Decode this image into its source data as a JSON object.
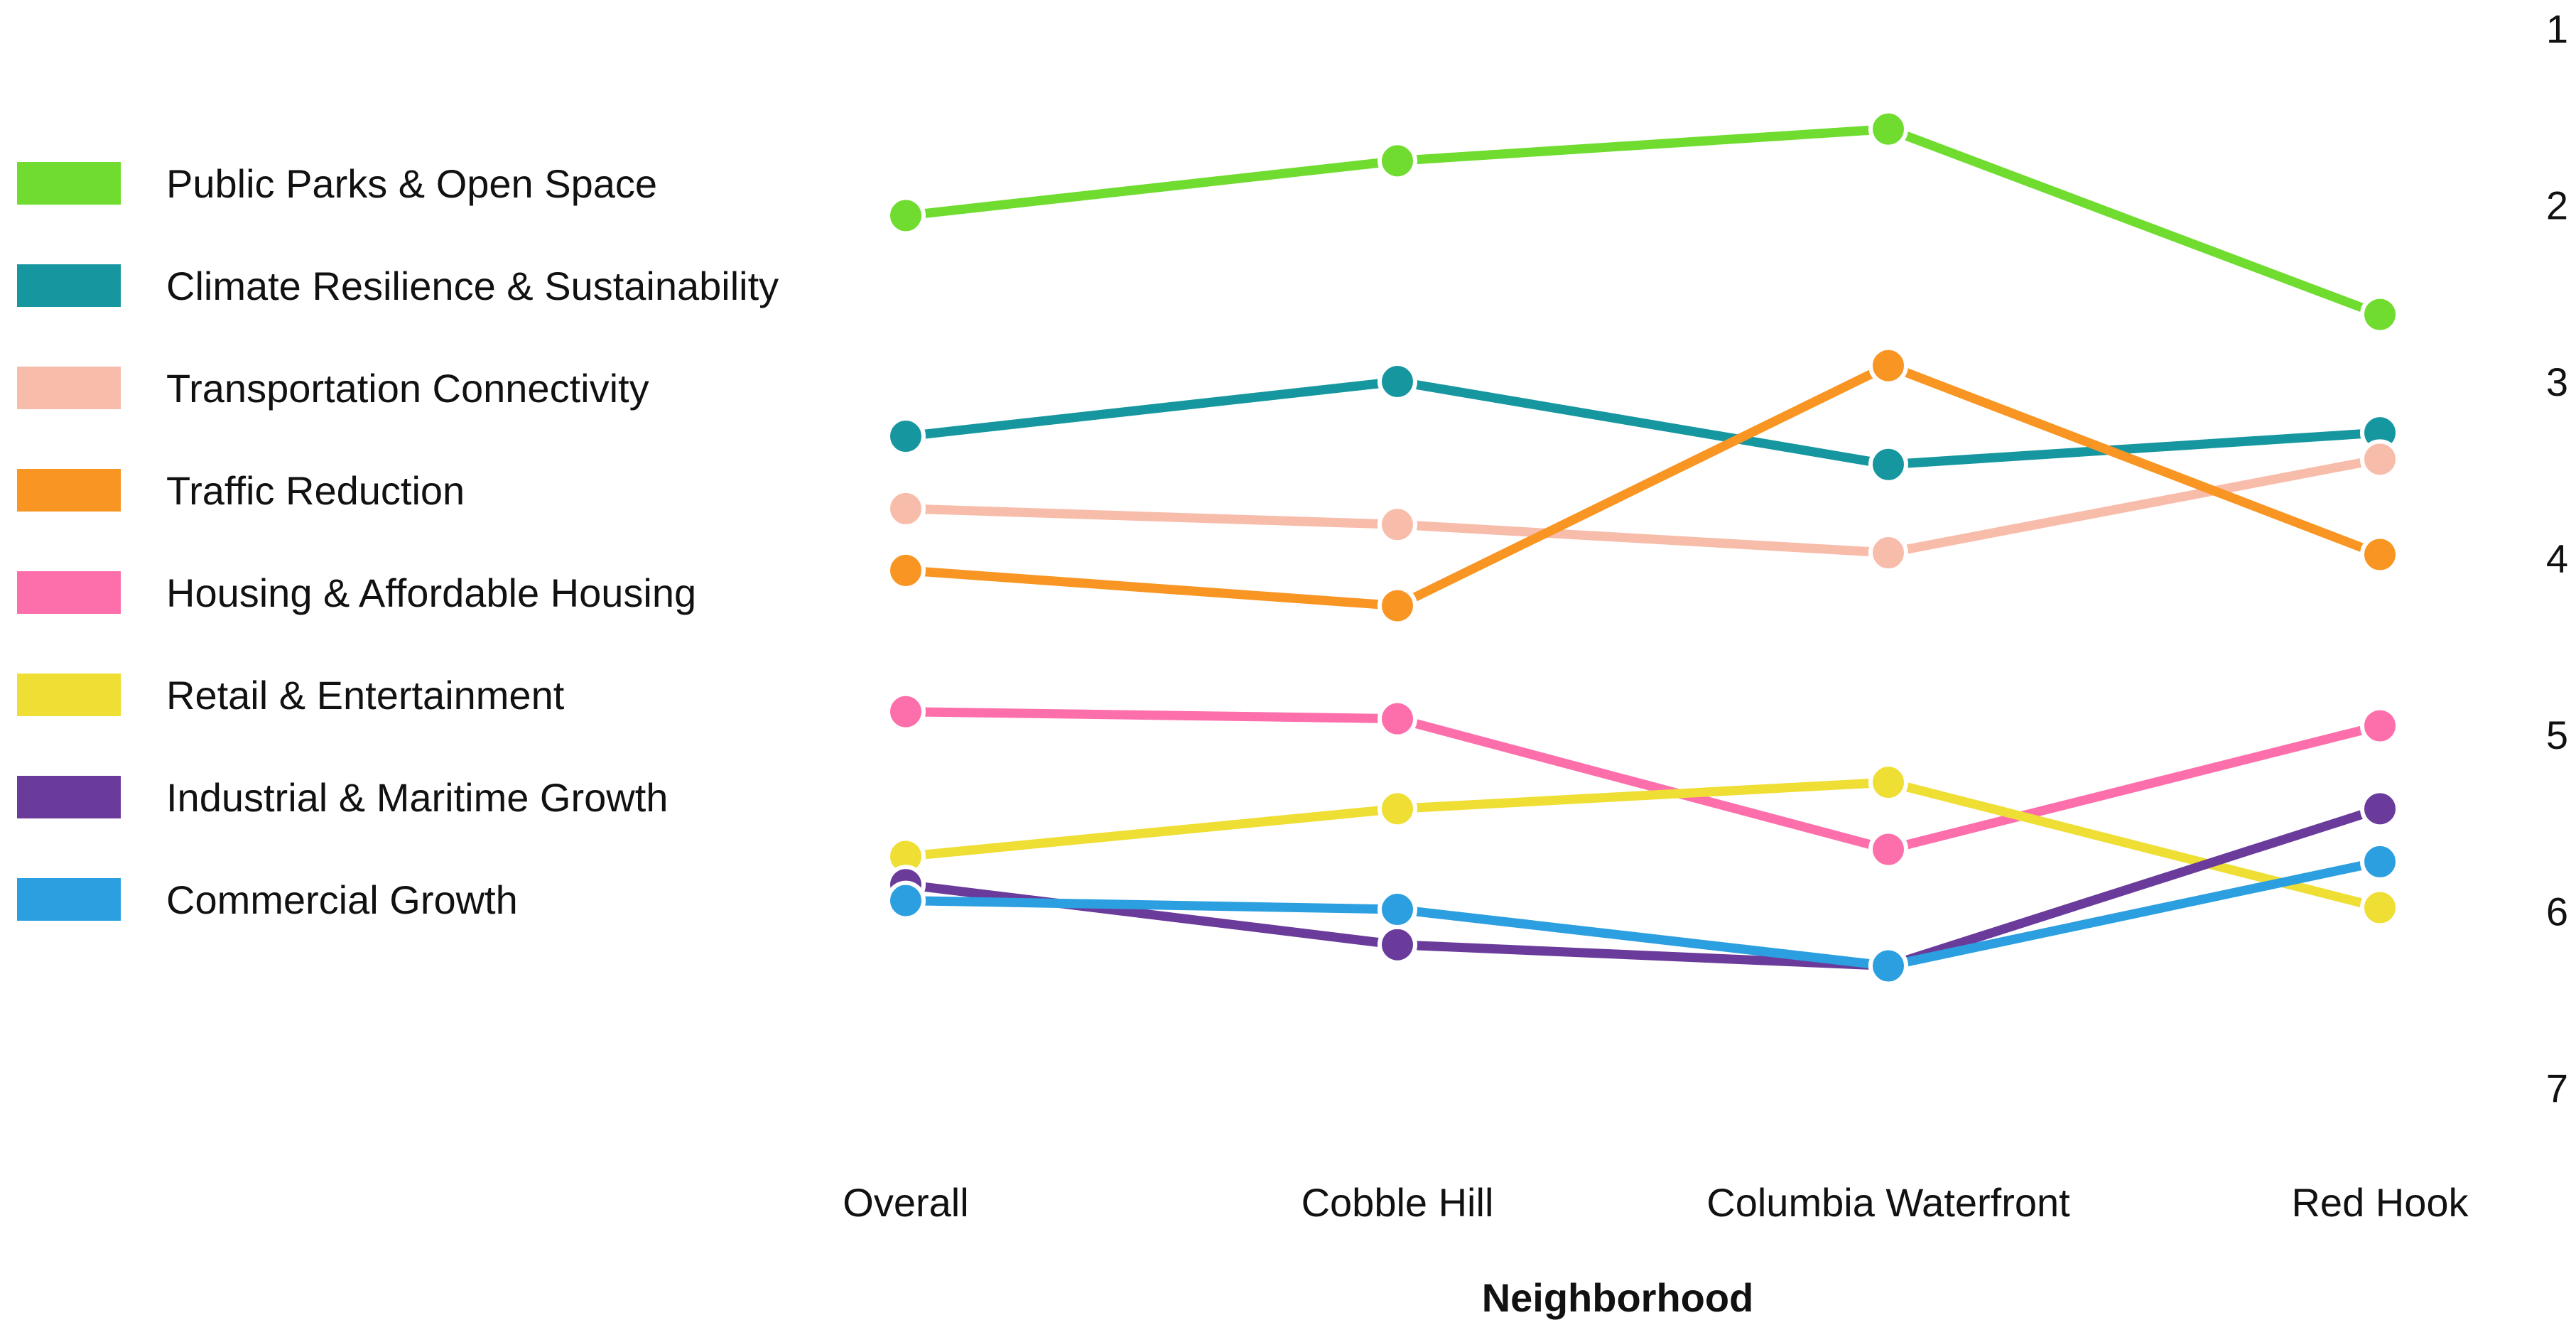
{
  "chart_data": {
    "type": "line",
    "title": "",
    "xlabel": "Neighborhood",
    "ylabel": "",
    "categories": [
      "Overall",
      "Cobble Hill",
      "Columbia Waterfront",
      "Red Hook"
    ],
    "yticks": [
      "1",
      "2",
      "3",
      "4",
      "5",
      "6",
      "7"
    ],
    "ylim": [
      1,
      7
    ],
    "y_axis_position": "right",
    "y_inverted": true,
    "grid": false,
    "legend_position": "left",
    "series": [
      {
        "name": "Public Parks & Open Space",
        "color": "#6fdc2f",
        "values": [
          2.06,
          1.75,
          1.57,
          2.62
        ]
      },
      {
        "name": "Climate Resilience & Sustainability",
        "color": "#16979f",
        "values": [
          3.31,
          3.0,
          3.47,
          3.29
        ]
      },
      {
        "name": "Transportation Connectivity",
        "color": "#f8bcaa",
        "values": [
          3.72,
          3.81,
          3.97,
          3.44
        ]
      },
      {
        "name": "Traffic Reduction",
        "color": "#f99522",
        "values": [
          4.07,
          4.27,
          2.91,
          3.98
        ]
      },
      {
        "name": "Housing & Affordable Housing",
        "color": "#fd6fab",
        "values": [
          4.87,
          4.91,
          5.65,
          4.95
        ]
      },
      {
        "name": "Retail & Entertainment",
        "color": "#efde33",
        "values": [
          5.69,
          5.42,
          5.27,
          5.98
        ]
      },
      {
        "name": "Industrial & Maritime Growth",
        "color": "#6a3b9a",
        "values": [
          5.85,
          6.19,
          6.31,
          5.42
        ]
      },
      {
        "name": "Commercial Growth",
        "color": "#2c9fe0",
        "values": [
          5.94,
          5.99,
          6.31,
          5.72
        ]
      }
    ]
  }
}
